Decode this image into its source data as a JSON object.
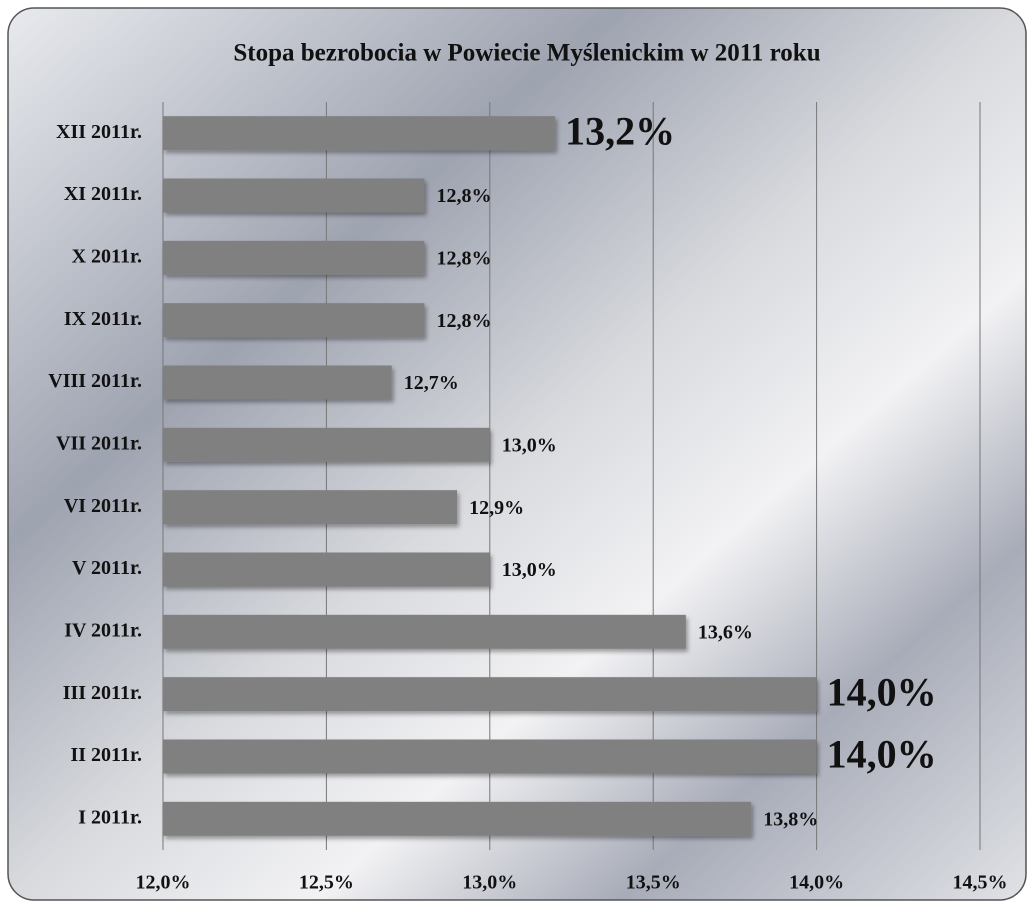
{
  "chart_data": {
    "type": "bar",
    "orientation": "horizontal",
    "title": "Stopa bezrobocia w Powiecie Myślenickim w 2011 roku",
    "categories": [
      "XII 2011r.",
      "XI 2011r.",
      "X 2011r.",
      "IX 2011r.",
      "VIII 2011r.",
      "VII 2011r.",
      "VI 2011r.",
      "V 2011r.",
      "IV 2011r.",
      "III 2011r.",
      "II 2011r.",
      "I 2011r."
    ],
    "values": [
      13.2,
      12.8,
      12.8,
      12.8,
      12.7,
      13.0,
      12.9,
      13.0,
      13.6,
      14.0,
      14.0,
      13.8
    ],
    "value_labels": [
      "13,2%",
      "12,8%",
      "12,8%",
      "12,8%",
      "12,7%",
      "13,0%",
      "12,9%",
      "13,0%",
      "13,6%",
      "14,0%",
      "14,0%",
      "13,8%"
    ],
    "color": "#808080",
    "xlim": [
      12,
      14.5
    ],
    "xticks": [
      {
        "value": 12,
        "label": "12,0%"
      },
      {
        "value": 12.5,
        "label": "12,5%"
      },
      {
        "value": 13,
        "label": "13,0%"
      },
      {
        "value": 13.5,
        "label": "13,5%"
      },
      {
        "value": 14,
        "label": "14,0%"
      },
      {
        "value": 14.5,
        "label": "14,5%"
      }
    ],
    "grid": true
  }
}
